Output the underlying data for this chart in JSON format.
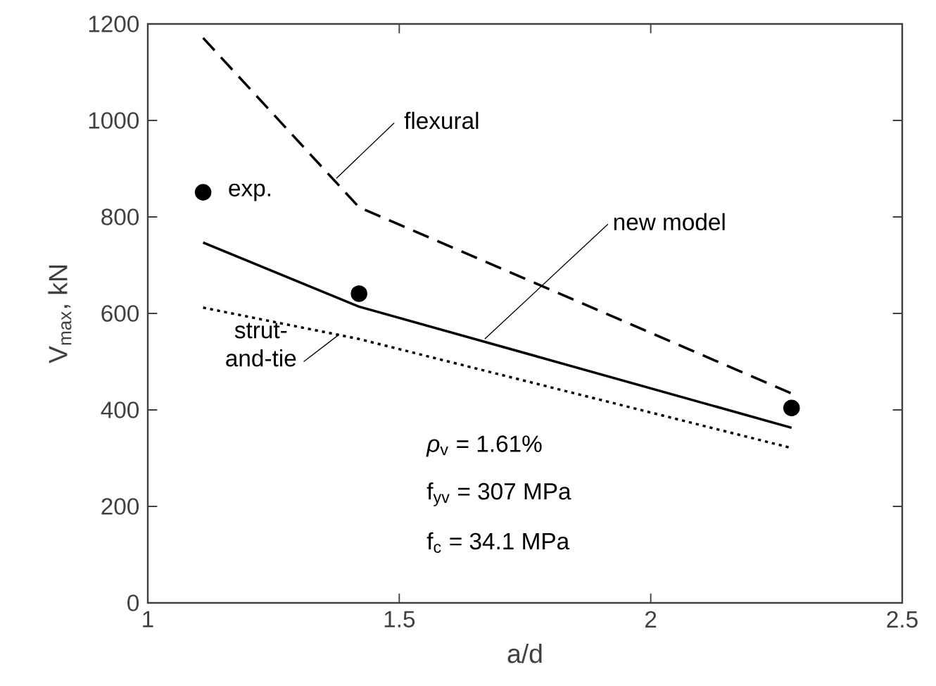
{
  "chart_data": {
    "type": "line",
    "xlabel": "a/d",
    "ylabel": "V$_{max}$, kN",
    "x": [
      1.11,
      1.42,
      2.28
    ],
    "series": [
      {
        "type": "scatter",
        "color": "#000000",
        "values": [
          851,
          641,
          404
        ]
      },
      {
        "line_style": "dashed",
        "color": "#000000",
        "values": [
          1171,
          820,
          434
        ]
      },
      {
        "line_style": "solid",
        "color": "#000000",
        "values": [
          747,
          614,
          363
        ]
      },
      {
        "line_style": "dotted",
        "color": "#000000",
        "values": [
          612,
          547,
          321
        ]
      }
    ],
    "annotations": [
      {
        "text": "exp.",
        "x": 1.11,
        "y": 851
      },
      {
        "text": "flexural",
        "x": 1.375,
        "y": 880
      },
      {
        "text": "new model",
        "x": 1.67,
        "y": 547
      },
      {
        "text": "strut-and-tie",
        "x": 1.38,
        "y": 556
      },
      "*ρ*$_{v}$ = 1.61%",
      "f$_{yv}$ = 307 MPa",
      "f$_{c}$ = 34.1 MPa"
    ],
    "xlim": [
      1,
      2.5
    ],
    "ylim": [
      0,
      1200
    ],
    "xticks": [
      1,
      1.5,
      2,
      2.5
    ],
    "yticks": [
      0,
      200,
      400,
      600,
      800,
      1000,
      1200
    ],
    "grid": false
  }
}
